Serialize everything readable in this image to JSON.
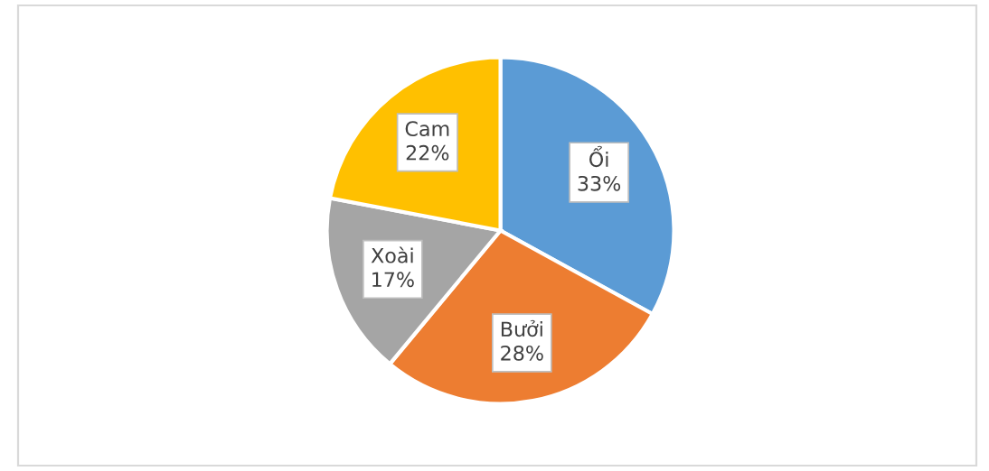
{
  "chart_data": {
    "type": "pie",
    "categories": [
      "Ổi",
      "Bưởi",
      "Xoài",
      "Cam"
    ],
    "values": [
      33,
      28,
      17,
      22
    ],
    "colors": [
      "#5b9bd5",
      "#ed7d31",
      "#a5a5a5",
      "#ffc000"
    ],
    "value_labels": [
      "33%",
      "28%",
      "17%",
      "22%"
    ],
    "legend": false
  }
}
